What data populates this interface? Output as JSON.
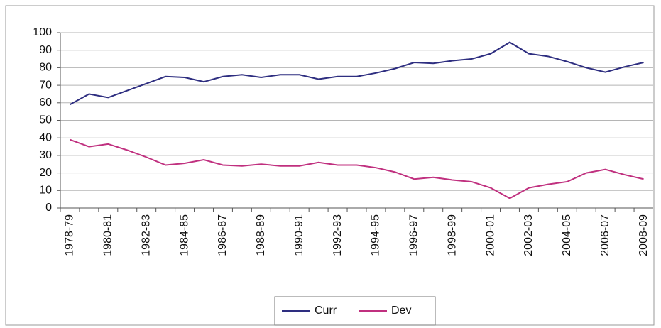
{
  "chart_data": {
    "type": "line",
    "categories": [
      "1978-79",
      null,
      "1980-81",
      null,
      "1982-83",
      null,
      "1984-85",
      null,
      "1986-87",
      null,
      "1988-89",
      null,
      "1990-91",
      null,
      "1992-93",
      null,
      "1994-95",
      null,
      "1996-97",
      null,
      "1998-99",
      null,
      "2000-01",
      null,
      "2002-03",
      null,
      "2004-05",
      null,
      "2006-07",
      null,
      "2008-09"
    ],
    "series": [
      {
        "name": "Curr",
        "color": "#2e2e80",
        "values": [
          59,
          65,
          63,
          67,
          71,
          75,
          74.5,
          72,
          75,
          76,
          74.5,
          76,
          76,
          73.5,
          75,
          75,
          77,
          79.5,
          83,
          82.5,
          84,
          85,
          88,
          94.5,
          88,
          86.5,
          83.5,
          80,
          77.5,
          80.5,
          83
        ]
      },
      {
        "name": "Dev",
        "color": "#c0307f",
        "values": [
          39,
          35,
          36.5,
          33,
          29,
          24.5,
          25.5,
          27.5,
          24.5,
          24,
          25,
          24,
          24,
          26,
          24.5,
          24.5,
          23,
          20.5,
          16.5,
          17.5,
          16,
          15,
          11.5,
          5.5,
          11.5,
          13.5,
          15,
          20,
          22,
          19,
          16.5
        ]
      }
    ],
    "ylim": [
      0,
      100
    ],
    "yticks": [
      0,
      10,
      20,
      30,
      40,
      50,
      60,
      70,
      80,
      90,
      100
    ],
    "grid": true,
    "legend": "bottom"
  }
}
